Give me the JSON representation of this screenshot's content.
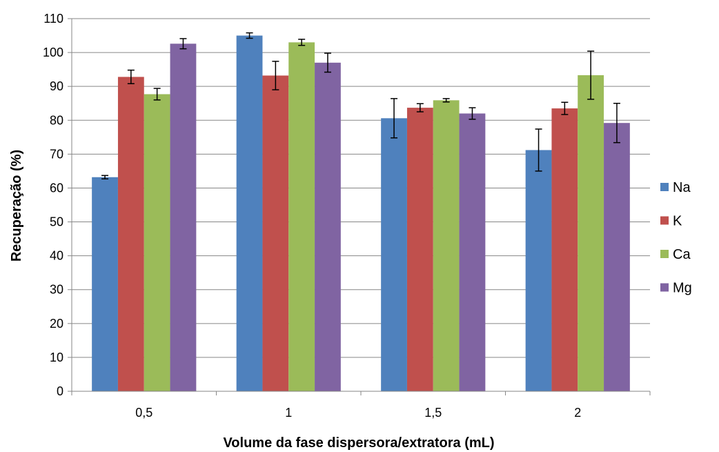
{
  "chart_data": {
    "type": "bar",
    "title": "",
    "xlabel": "Volume da fase dispersora/extratora (mL)",
    "ylabel": "Recuperação (%)",
    "categories": [
      "0,5",
      "1",
      "1,5",
      "2"
    ],
    "ylim": [
      0,
      110
    ],
    "yticks": [
      0,
      10,
      20,
      30,
      40,
      50,
      60,
      70,
      80,
      90,
      100,
      110
    ],
    "grid": true,
    "legend_position": "right",
    "series": [
      {
        "name": "Na",
        "color": "#4f81bd",
        "values": [
          63.2,
          105.0,
          80.6,
          71.2
        ],
        "errors": [
          0.5,
          0.8,
          5.8,
          6.2
        ]
      },
      {
        "name": "K",
        "color": "#c0504d",
        "values": [
          92.8,
          93.2,
          83.7,
          83.5
        ],
        "errors": [
          2.0,
          4.2,
          1.2,
          1.8
        ]
      },
      {
        "name": "Ca",
        "color": "#9bbb59",
        "values": [
          87.7,
          103.0,
          85.9,
          93.3
        ],
        "errors": [
          1.7,
          0.9,
          0.5,
          7.1
        ]
      },
      {
        "name": "Mg",
        "color": "#8064a2",
        "values": [
          102.6,
          97.0,
          82.0,
          79.2
        ],
        "errors": [
          1.5,
          2.8,
          1.7,
          5.8
        ]
      }
    ]
  }
}
